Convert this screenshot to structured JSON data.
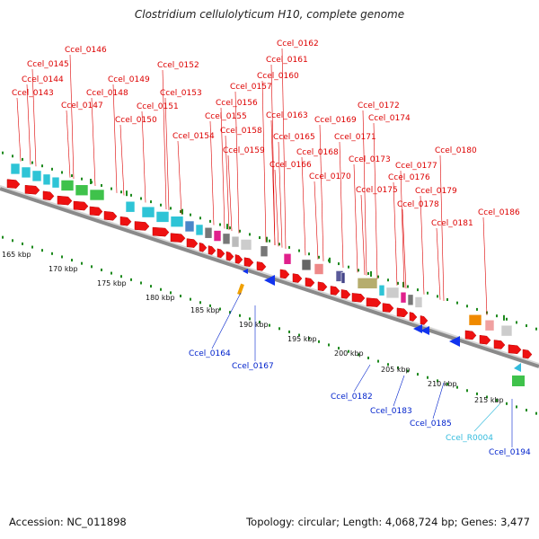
{
  "title": "Clostridium cellulolyticum H10, complete genome",
  "footer": {
    "accession": "Accession: NC_011898",
    "summary": "Topology: circular; Length: 4,068,724 bp; Genes: 3,477"
  },
  "colors": {
    "forward_label": "#dd0000",
    "reverse_label": "#0022cc",
    "rna_label": "#33bbdd",
    "backbone": "#8a8a8a",
    "tick_dots": "#1e8a1e",
    "forward_gene": "#ee1111",
    "reverse_gene": "#1133ee"
  },
  "map": {
    "ticks": [
      "165 kbp",
      "170 kbp",
      "175 kbp",
      "180 kbp",
      "185 kbp",
      "190 kbp",
      "195 kbp",
      "200 kbp",
      "205 kbp",
      "210 kbp",
      "215 kbp"
    ],
    "forward_labels": [
      "Ccel_0143",
      "Ccel_0144",
      "Ccel_0145",
      "Ccel_0146",
      "Ccel_0147",
      "Ccel_0148",
      "Ccel_0149",
      "Ccel_0150",
      "Ccel_0151",
      "Ccel_0152",
      "Ccel_0153",
      "Ccel_0154",
      "Ccel_0155",
      "Ccel_0156",
      "Ccel_0157",
      "Ccel_0158",
      "Ccel_0159",
      "Ccel_0160",
      "Ccel_0161",
      "Ccel_0162",
      "Ccel_0163",
      "Ccel_0165",
      "Ccel_0166",
      "Ccel_0168",
      "Ccel_0169",
      "Ccel_0170",
      "Ccel_0171",
      "Ccel_0172",
      "Ccel_0173",
      "Ccel_0174",
      "Ccel_0175",
      "Ccel_0176",
      "Ccel_0177",
      "Ccel_0178",
      "Ccel_0179",
      "Ccel_0180",
      "Ccel_0181",
      "Ccel_0186"
    ],
    "reverse_labels": [
      "Ccel_0164",
      "Ccel_0167",
      "Ccel_0182",
      "Ccel_0183",
      "Ccel_0185",
      "Ccel_0194"
    ],
    "rna_labels": [
      "Ccel_R0004"
    ]
  }
}
